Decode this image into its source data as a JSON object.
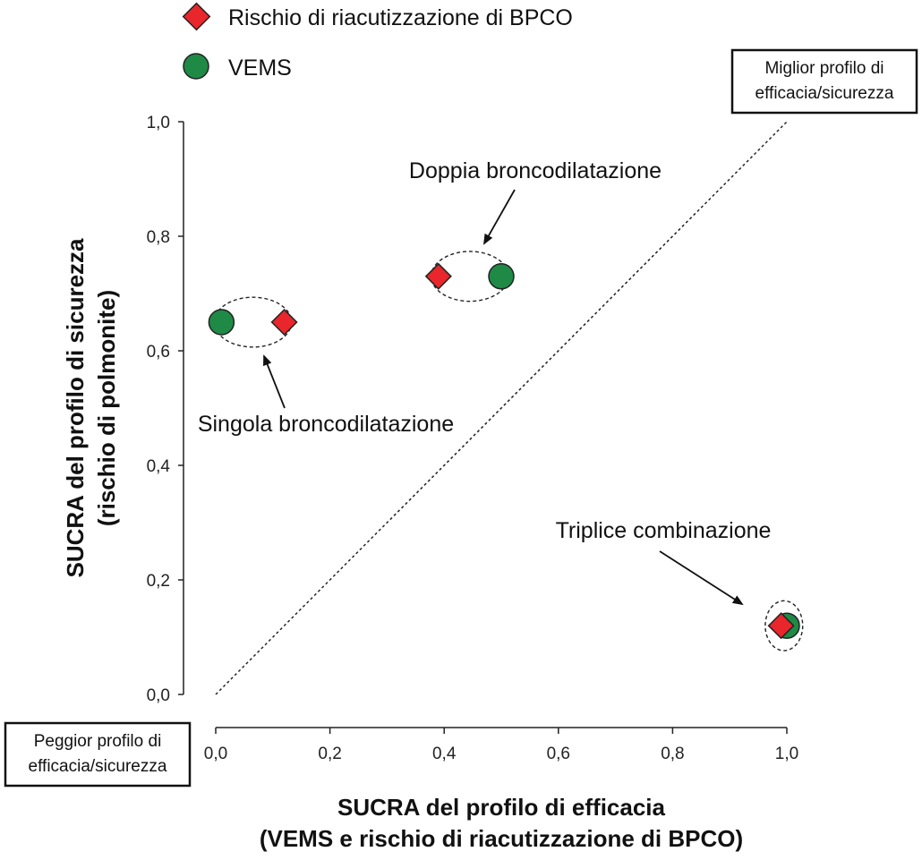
{
  "chart_data": {
    "type": "scatter",
    "xlabel_lines": [
      "SUCRA del profilo di efficacia",
      "(VEMS e rischio di riacutizzazione di BPCO)"
    ],
    "ylabel_lines": [
      "SUCRA del profilo di sicurezza",
      "(rischio di polmonite)"
    ],
    "xlim": [
      0,
      1
    ],
    "ylim": [
      0,
      1
    ],
    "x_ticks": [
      0,
      0.2,
      0.4,
      0.6,
      0.8,
      1.0
    ],
    "x_tick_labels": [
      "0,0",
      "0,2",
      "0,4",
      "0,6",
      "0,8",
      "1,0"
    ],
    "y_ticks": [
      0,
      0.2,
      0.4,
      0.6,
      0.8,
      1.0
    ],
    "y_tick_labels": [
      "0,0",
      "0,2",
      "0,4",
      "0,6",
      "0,8",
      "1,0"
    ],
    "grid": false,
    "legend_position": "top-left",
    "series": [
      {
        "name": "Rischio di riacutizzazione di BPCO",
        "marker": "diamond",
        "color": "#e8262b",
        "points": [
          {
            "x": 0.12,
            "y": 0.65
          },
          {
            "x": 0.39,
            "y": 0.73
          },
          {
            "x": 0.99,
            "y": 0.12
          }
        ]
      },
      {
        "name": "VEMS",
        "marker": "circle",
        "color": "#1e8a46",
        "points": [
          {
            "x": 0.01,
            "y": 0.65
          },
          {
            "x": 0.5,
            "y": 0.73
          },
          {
            "x": 1.0,
            "y": 0.12
          }
        ]
      }
    ],
    "reference_line": {
      "from": [
        0,
        0
      ],
      "to": [
        1,
        1
      ],
      "style": "dotted"
    },
    "annotations": [
      {
        "text": "Singola broncodilatazione",
        "center": [
          0.065,
          0.65
        ],
        "ellipse_rx": 0.165,
        "ellipse_ry": 0.075
      },
      {
        "text": "Doppia broncodilatazione",
        "center": [
          0.445,
          0.73
        ],
        "ellipse_rx": 0.165,
        "ellipse_ry": 0.075
      },
      {
        "text": "Triplice combinazione",
        "center": [
          0.995,
          0.12
        ],
        "ellipse_rx": 0.08,
        "ellipse_ry": 0.075
      }
    ],
    "corner_labels": {
      "best": [
        "Miglior profilo di",
        "efficacia/sicurezza"
      ],
      "worst": [
        "Peggior profilo di",
        "efficacia/sicurezza"
      ]
    }
  }
}
